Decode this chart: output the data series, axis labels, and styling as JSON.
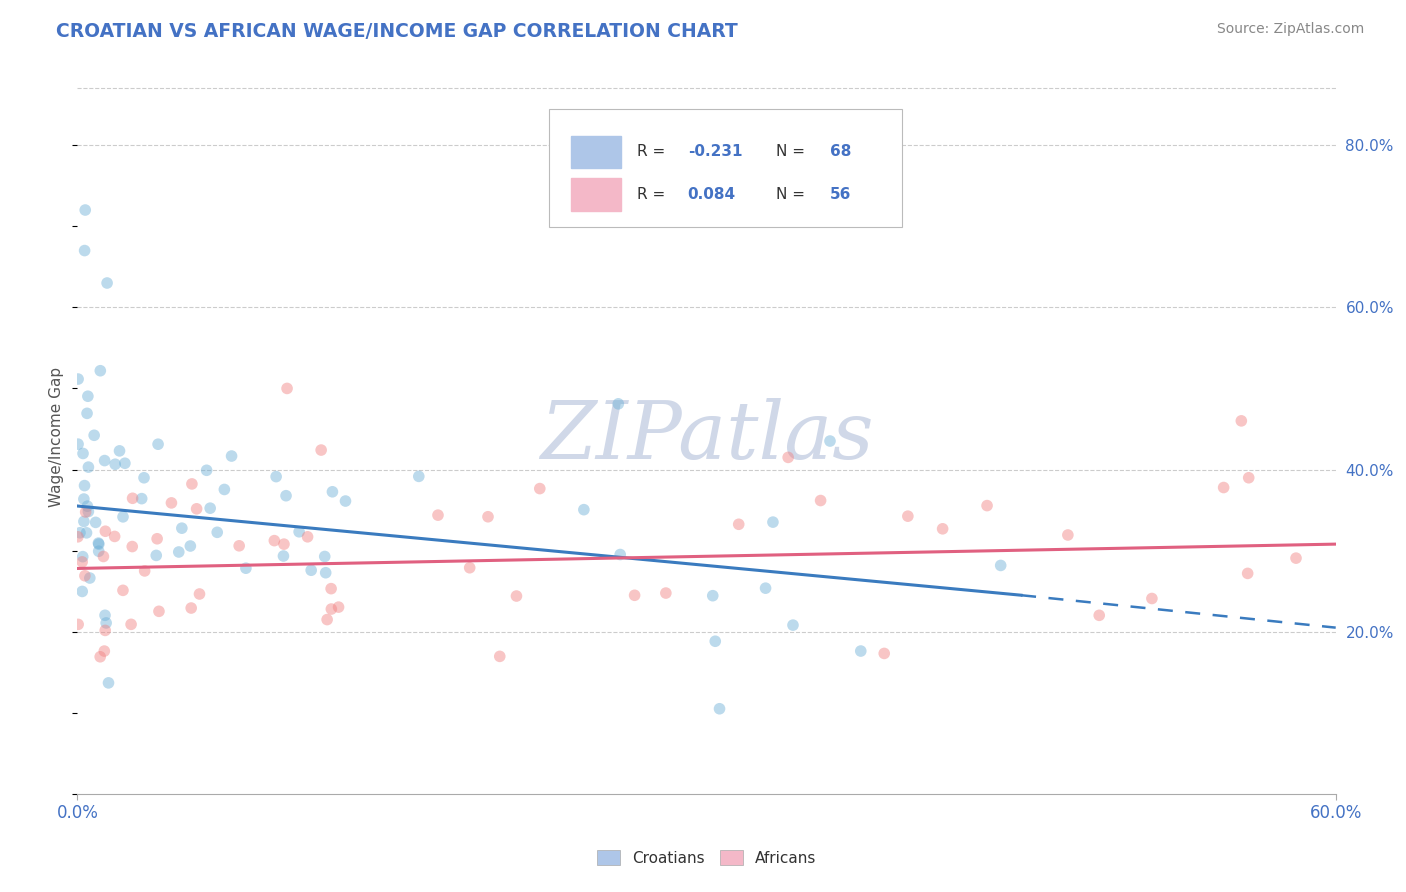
{
  "title": "CROATIAN VS AFRICAN WAGE/INCOME GAP CORRELATION CHART",
  "source": "Source: ZipAtlas.com",
  "ylabel": "Wage/Income Gap",
  "xlim": [
    0.0,
    0.6
  ],
  "ylim": [
    0.0,
    0.88
  ],
  "xtick_labels": [
    "0.0%",
    "60.0%"
  ],
  "xtick_vals": [
    0.0,
    0.6
  ],
  "ytick_labels": [
    "20.0%",
    "40.0%",
    "60.0%",
    "80.0%"
  ],
  "ytick_vals": [
    0.2,
    0.4,
    0.6,
    0.8
  ],
  "r1": "-0.231",
  "n1": "68",
  "r2": "0.084",
  "n2": "56",
  "croatian_dot_color": "#6baed6",
  "african_dot_color": "#f08080",
  "croatian_line_color": "#3a7bbf",
  "african_line_color": "#e06080",
  "croatian_legend_fill": "#aec6e8",
  "african_legend_fill": "#f4b8c8",
  "watermark_color": "#d0d8e8",
  "title_color": "#4472c4",
  "source_color": "#888888",
  "axis_label_color": "#555555",
  "tick_color": "#4472c4",
  "grid_color": "#cccccc",
  "dot_alpha": 0.45,
  "dot_size": 70,
  "cro_line_start_x": 0.0,
  "cro_line_start_y": 0.355,
  "cro_line_end_solid_x": 0.45,
  "cro_line_end_solid_y": 0.245,
  "cro_line_end_dash_x": 0.6,
  "cro_line_end_dash_y": 0.205,
  "afr_line_start_x": 0.0,
  "afr_line_start_y": 0.278,
  "afr_line_end_x": 0.6,
  "afr_line_end_y": 0.308,
  "legend_r1_text": "R = -0.231",
  "legend_n1_text": "N = 68",
  "legend_r2_text": "R = 0.084",
  "legend_n2_text": "N = 56",
  "legend_label1": "Croatians",
  "legend_label2": "Africans"
}
